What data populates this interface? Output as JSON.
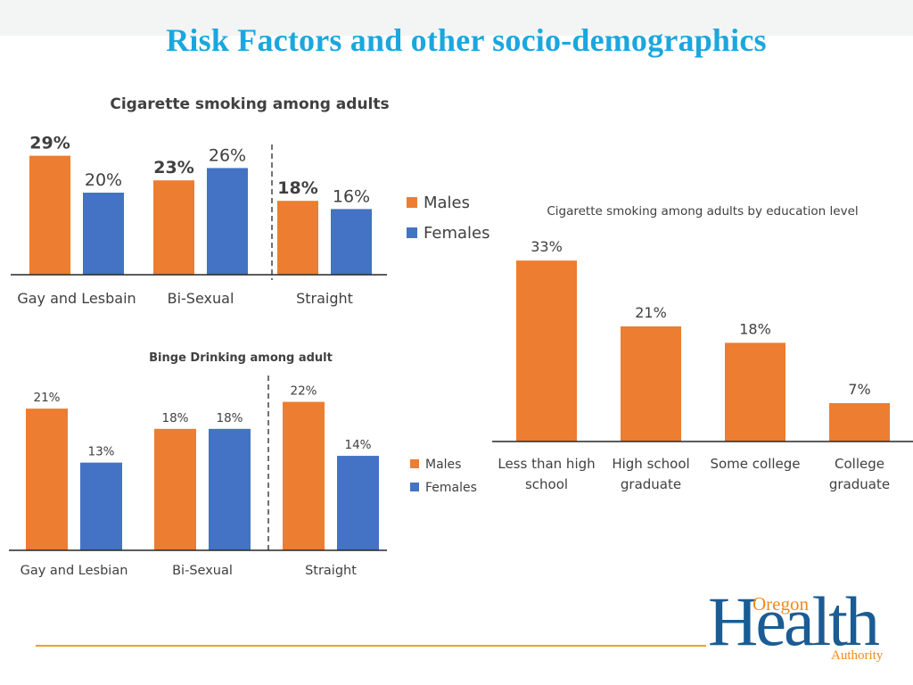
{
  "slide": {
    "title": "Risk Factors and other socio-demographics"
  },
  "colors": {
    "males": "#ed7d31",
    "females": "#4472c4",
    "title": "#1ba7de",
    "accent_line": "#f0a024",
    "logo_blue": "#1a5c94",
    "logo_orange": "#f08a1c"
  },
  "logo": {
    "oregon": "Oregon",
    "health": "Health",
    "authority": "Authority"
  },
  "chart_data": [
    {
      "id": "smoking",
      "type": "bar",
      "title": "Cigarette smoking among adults",
      "categories": [
        "Gay and Lesbain",
        "Bi-Sexual",
        "Straight"
      ],
      "series": [
        {
          "name": "Males",
          "values": [
            29,
            23,
            18
          ]
        },
        {
          "name": "Females",
          "values": [
            20,
            26,
            16
          ]
        }
      ],
      "value_labels": [
        [
          "29%",
          "23%",
          "18%"
        ],
        [
          "20%",
          "26%",
          "16%"
        ]
      ],
      "bold_series": 0,
      "ylim": [
        0,
        30
      ],
      "xlabel": "",
      "ylabel": "",
      "legend": "right",
      "divider_before_category": 2
    },
    {
      "id": "binge",
      "type": "bar",
      "title": "Binge Drinking among adult",
      "categories": [
        "Gay and Lesbian",
        "Bi-Sexual",
        "Straight"
      ],
      "series": [
        {
          "name": "Males",
          "values": [
            21,
            18,
            22
          ]
        },
        {
          "name": "Females",
          "values": [
            13,
            18,
            14
          ]
        }
      ],
      "value_labels": [
        [
          "21%",
          "18%",
          "22%"
        ],
        [
          "13%",
          "18%",
          "14%"
        ]
      ],
      "bold_series": null,
      "ylim": [
        0,
        23
      ],
      "xlabel": "",
      "ylabel": "",
      "legend": "right",
      "divider_before_category": 2
    },
    {
      "id": "education",
      "type": "bar",
      "title": "Cigarette smoking among adults by education level",
      "categories": [
        [
          "Less than high",
          "school"
        ],
        [
          "High school",
          "graduate"
        ],
        [
          "Some college"
        ],
        [
          "College",
          "graduate"
        ]
      ],
      "values": [
        33,
        21,
        18,
        7
      ],
      "value_labels": [
        "33%",
        "21%",
        "18%",
        "7%"
      ],
      "ylim": [
        0,
        34
      ],
      "xlabel": "",
      "ylabel": "",
      "legend": "none"
    }
  ]
}
